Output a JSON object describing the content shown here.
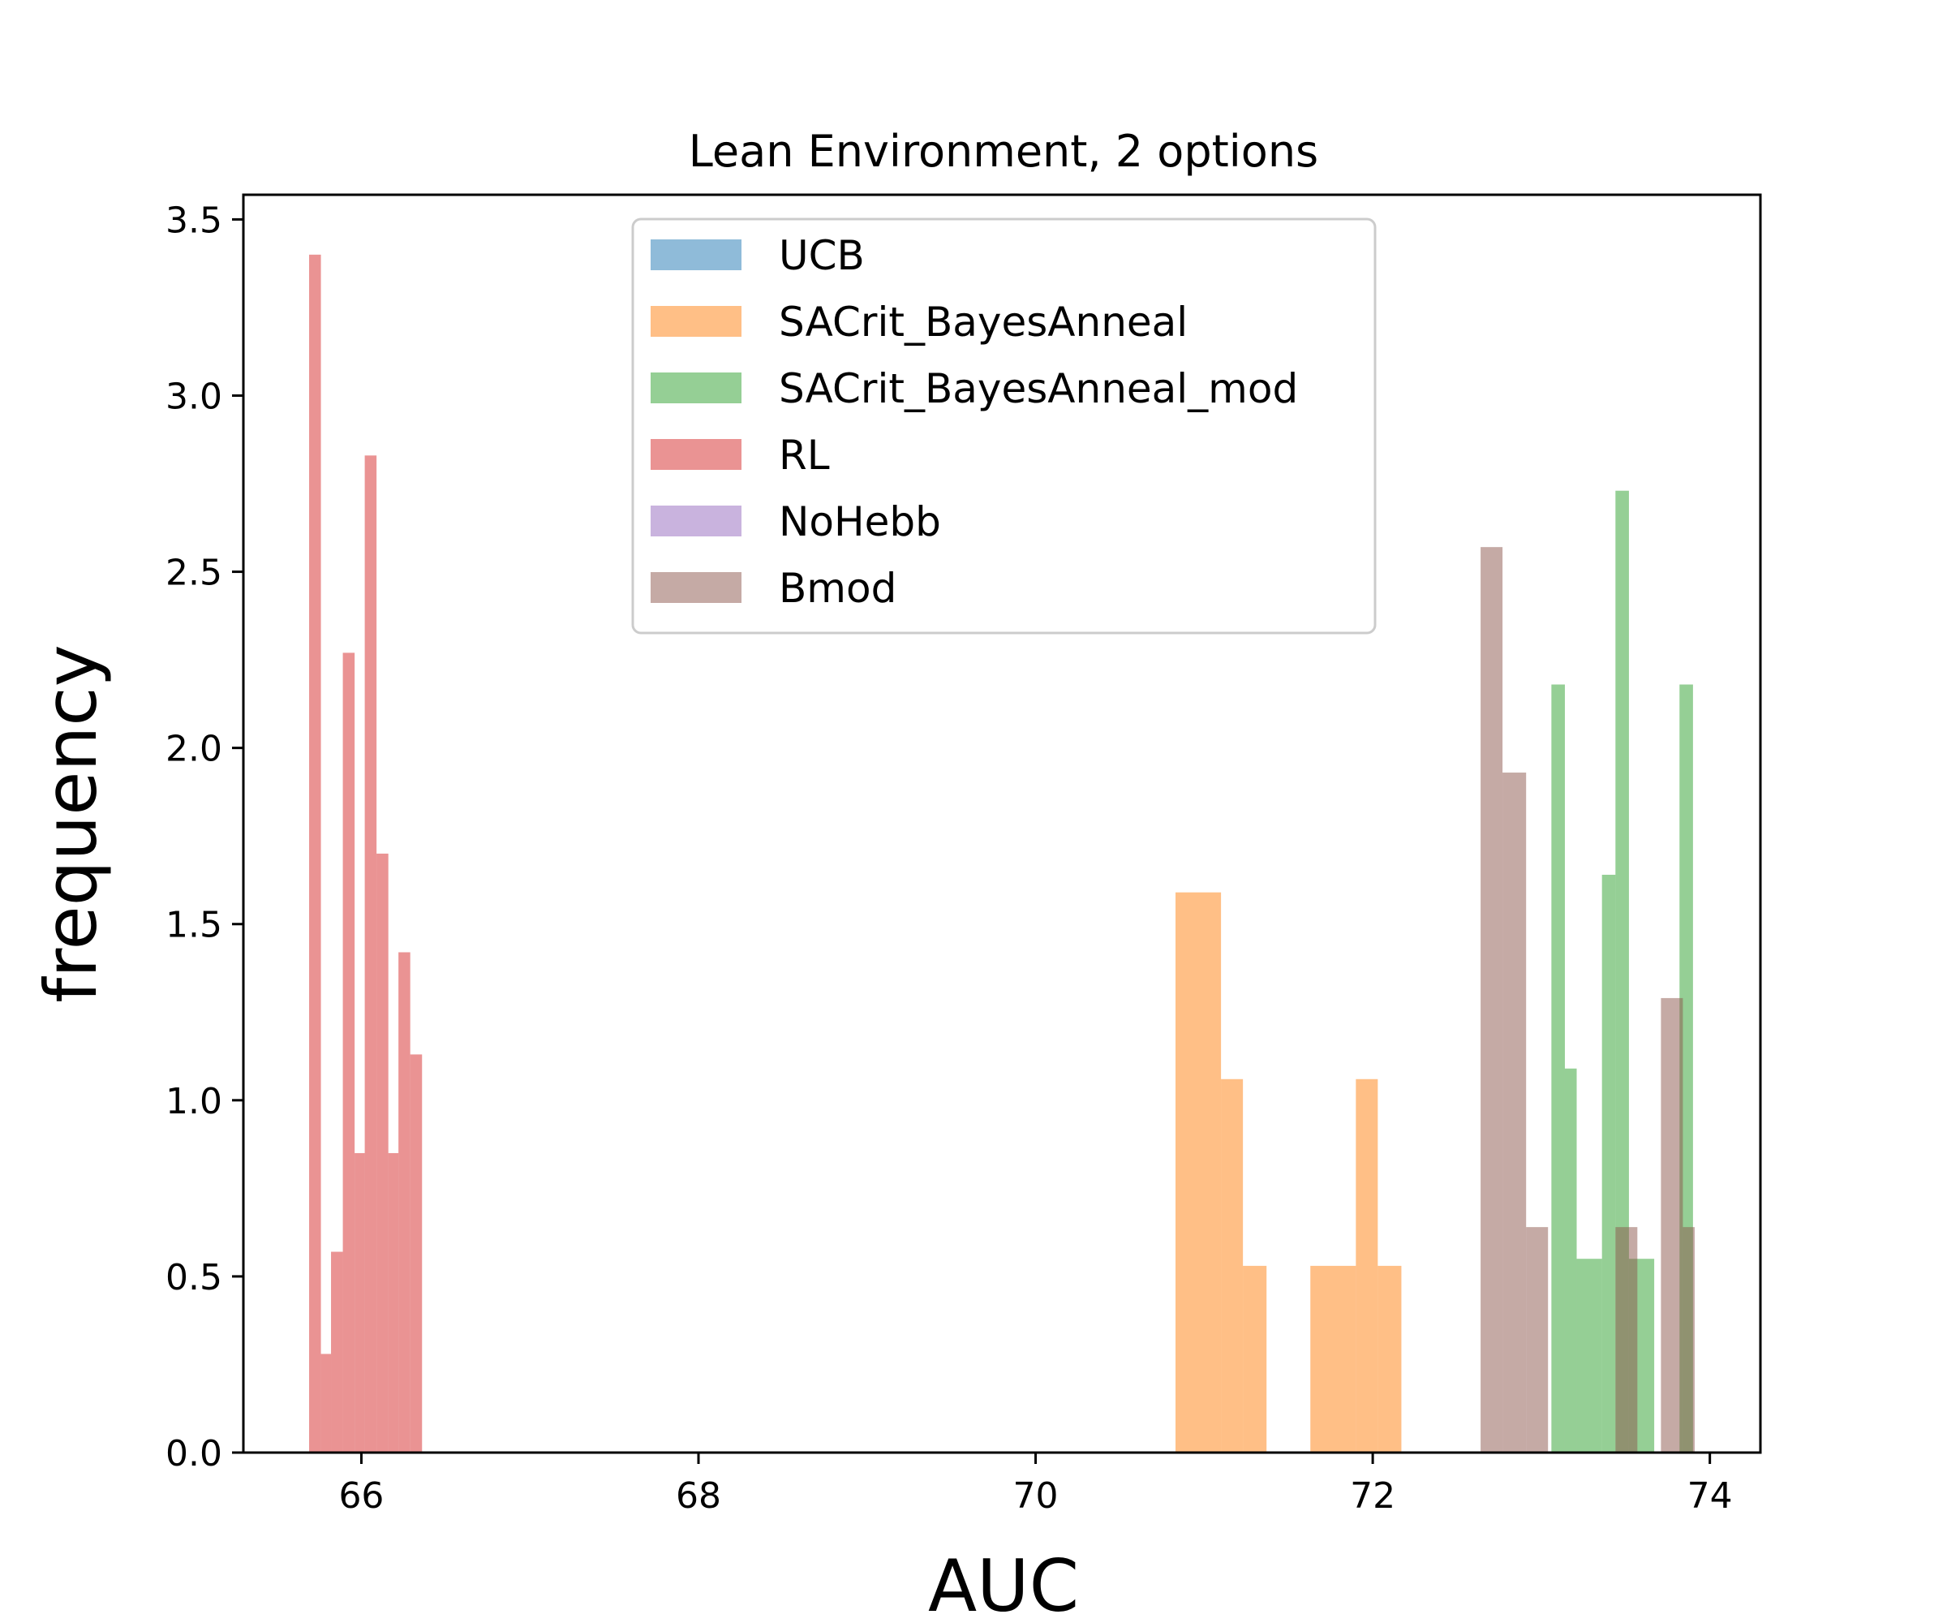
{
  "chart_data": {
    "type": "histogram",
    "title": "Lean Environment, 2 options",
    "xlabel": "AUC",
    "ylabel": "frequency",
    "xlim": [
      65.3,
      74.3
    ],
    "ylim": [
      0,
      3.57
    ],
    "xticks": [
      "66",
      "68",
      "70",
      "72",
      "74"
    ],
    "yticks": [
      "0.0",
      "0.5",
      "1.0",
      "1.5",
      "2.0",
      "2.5",
      "3.0",
      "3.5"
    ],
    "legend_position": "upper-center",
    "grid": false,
    "series": [
      {
        "name": "UCB",
        "color": "#1f77b4",
        "alpha": 0.5,
        "bins": []
      },
      {
        "name": "SACrit_BayesAnneal",
        "color": "#ff7f0e",
        "alpha": 0.5,
        "bins": [
          [
            70.83,
            71.1,
            1.59
          ],
          [
            71.1,
            71.23,
            1.06
          ],
          [
            71.23,
            71.37,
            0.53
          ],
          [
            71.63,
            71.9,
            0.53
          ],
          [
            71.9,
            72.03,
            1.06
          ],
          [
            72.03,
            72.17,
            0.53
          ]
        ]
      },
      {
        "name": "SACrit_BayesAnneal_mod",
        "color": "#2ca02c",
        "alpha": 0.5,
        "bins": [
          [
            73.06,
            73.14,
            2.18
          ],
          [
            73.14,
            73.21,
            1.09
          ],
          [
            73.21,
            73.36,
            0.55
          ],
          [
            73.36,
            73.44,
            1.64
          ],
          [
            73.44,
            73.52,
            2.73
          ],
          [
            73.52,
            73.67,
            0.55
          ],
          [
            73.82,
            73.9,
            2.18
          ]
        ]
      },
      {
        "name": "RL",
        "color": "#d62728",
        "alpha": 0.5,
        "bins": [
          [
            65.69,
            65.76,
            3.4
          ],
          [
            65.76,
            65.82,
            0.28
          ],
          [
            65.82,
            65.89,
            0.57
          ],
          [
            65.89,
            65.96,
            2.27
          ],
          [
            65.96,
            66.02,
            0.85
          ],
          [
            66.02,
            66.09,
            2.83
          ],
          [
            66.09,
            66.16,
            1.7
          ],
          [
            66.16,
            66.22,
            0.85
          ],
          [
            66.22,
            66.29,
            1.42
          ],
          [
            66.29,
            66.36,
            1.13
          ]
        ]
      },
      {
        "name": "NoHebb",
        "color": "#9467bd",
        "alpha": 0.5,
        "bins": []
      },
      {
        "name": "Bmod",
        "color": "#8c564b",
        "alpha": 0.5,
        "bins": [
          [
            72.64,
            72.77,
            2.57
          ],
          [
            72.77,
            72.91,
            1.93
          ],
          [
            72.91,
            73.04,
            0.64
          ],
          [
            73.44,
            73.57,
            0.64
          ],
          [
            73.71,
            73.84,
            1.29
          ],
          [
            73.84,
            73.91,
            0.64
          ]
        ]
      }
    ]
  }
}
